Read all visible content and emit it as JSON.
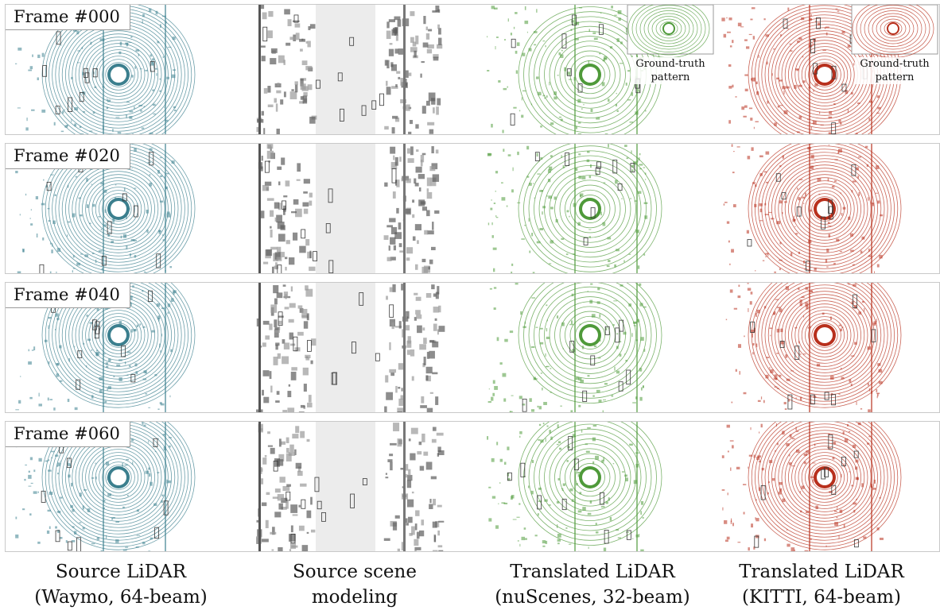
{
  "frames": [
    {
      "label": "Frame #000"
    },
    {
      "label": "Frame #020"
    },
    {
      "label": "Frame #040"
    },
    {
      "label": "Frame #060"
    }
  ],
  "insets": {
    "nuscenes_label": [
      "Ground-truth",
      "pattern"
    ],
    "kitti_label": [
      "Ground-truth",
      "pattern"
    ]
  },
  "columns": [
    {
      "line1": "Source LiDAR",
      "line2": "(Waymo, 64-beam)",
      "color": "#3b7f8e"
    },
    {
      "line1": "Source scene",
      "line2": "modeling",
      "color": "#8a8a8a"
    },
    {
      "line1": "Translated LiDAR",
      "line2": "(nuScenes, 32-beam)",
      "color": "#4f9a3a"
    },
    {
      "line1": "Translated LiDAR",
      "line2": "(KITTI, 64-beam)",
      "color": "#b8301d"
    }
  ]
}
